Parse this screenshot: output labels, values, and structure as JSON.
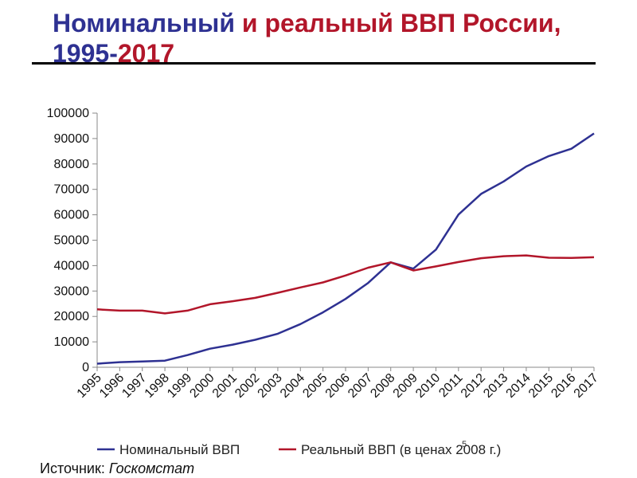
{
  "title": {
    "part1": "Номинальный",
    "part2": " и реальный ВВП России,",
    "part3": "1995-",
    "part4": "2017"
  },
  "source": {
    "label": "Источник",
    "value": "Госкомстат"
  },
  "page_number": "5",
  "colors": {
    "nominal": "#2e3192",
    "real": "#b2162a",
    "title_blue": "#2e3192",
    "title_red": "#b2162a"
  },
  "chart_data": {
    "type": "line",
    "title": "",
    "xlabel": "",
    "ylabel": "",
    "ylim": [
      0,
      100000
    ],
    "yticks": [
      0,
      10000,
      20000,
      30000,
      40000,
      50000,
      60000,
      70000,
      80000,
      90000,
      100000
    ],
    "categories": [
      "1995",
      "1996",
      "1997",
      "1998",
      "1999",
      "2000",
      "2001",
      "2002",
      "2003",
      "2004",
      "2005",
      "2006",
      "2007",
      "2008",
      "2009",
      "2010",
      "2011",
      "2012",
      "2013",
      "2014",
      "2015",
      "2016",
      "2017"
    ],
    "grid": false,
    "legend_position": "bottom",
    "series": [
      {
        "name": "Номинальный ВВП",
        "color": "#2e3192",
        "values": [
          1400,
          2000,
          2300,
          2600,
          4800,
          7300,
          8900,
          10800,
          13200,
          17000,
          21600,
          26900,
          33200,
          41300,
          38800,
          46300,
          60100,
          68200,
          73100,
          79000,
          83100,
          86000,
          92000
        ]
      },
      {
        "name": "Реальный ВВП (в ценах 2008 г.)",
        "color": "#b2162a",
        "values": [
          22800,
          22300,
          22300,
          21200,
          22300,
          24800,
          26000,
          27300,
          29300,
          31400,
          33400,
          36100,
          39200,
          41300,
          38100,
          39700,
          41400,
          42900,
          43700,
          44000,
          43100,
          43000,
          43300
        ]
      }
    ]
  }
}
